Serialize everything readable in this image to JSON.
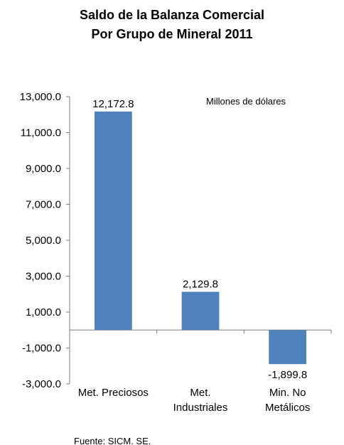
{
  "chart_data": {
    "type": "bar",
    "title_lines": [
      "Saldo de la Balanza Comercial",
      "Por Grupo de Mineral 2011"
    ],
    "unit_note": "Millones de dólares",
    "source": "Fuente: SICM. SE.",
    "categories": [
      [
        "Met. Preciosos"
      ],
      [
        "Met.",
        "Industriales"
      ],
      [
        "Min. No",
        "Metálicos"
      ]
    ],
    "values": [
      12172.8,
      2129.8,
      -1899.8
    ],
    "value_labels": [
      "12,172.8",
      "2,129.8",
      "-1,899.8"
    ],
    "ylim": [
      -3000,
      13000
    ],
    "yticks": [
      13000,
      11000,
      9000,
      7000,
      5000,
      3000,
      1000,
      -1000,
      -3000
    ],
    "ytick_labels": [
      "13,000.0",
      "11,000.0",
      "9,000.0",
      "7,000.0",
      "5,000.0",
      "3,000.0",
      "1,000.0",
      "-1,000.0",
      "-3,000.0"
    ],
    "bar_color": "#4f81bd",
    "grid": false,
    "xlabel": "",
    "ylabel": ""
  }
}
